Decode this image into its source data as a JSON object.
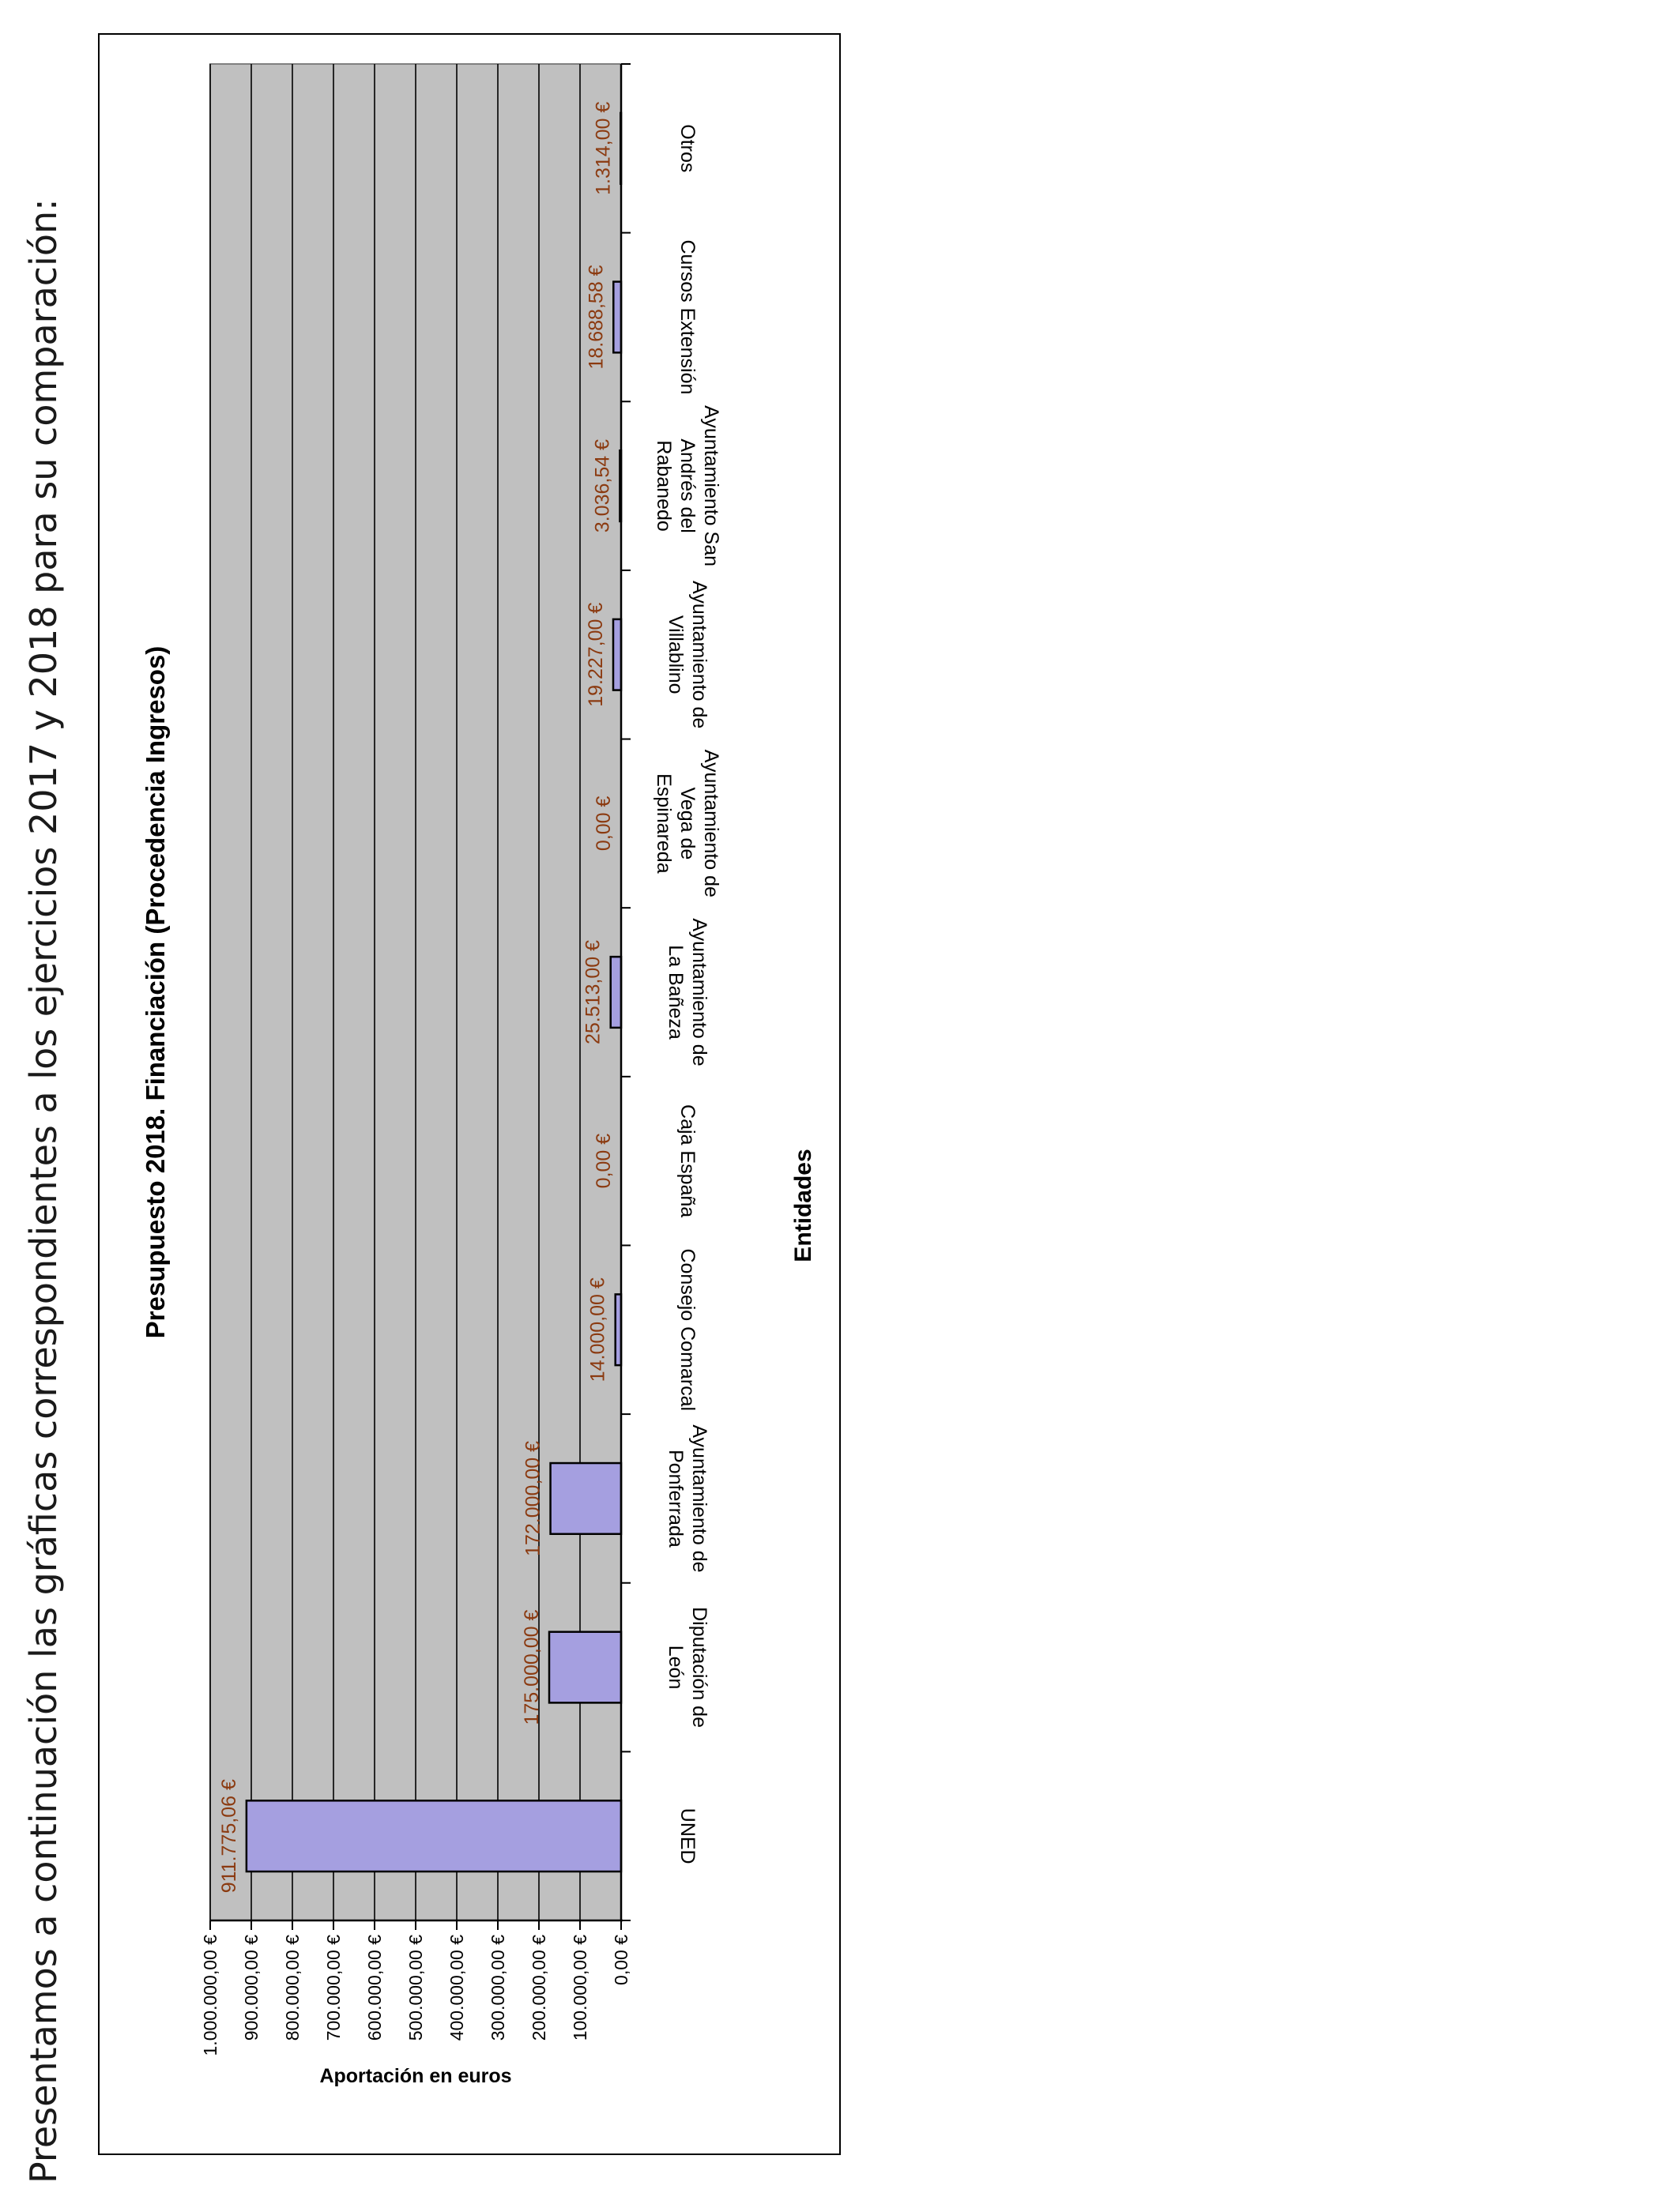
{
  "intro_text": "Presentamos a continuación las gráficas correspondientes a los ejercicios 2017 y 2018 para su comparación:",
  "colors": {
    "plot_bg": "#c0c0c0",
    "bar_fill": "#a59fe0",
    "bar_stroke": "#000000",
    "label": "#8b3a10",
    "grid": "#000000"
  },
  "chart_data": {
    "type": "bar",
    "title": "Presupuesto 2018. Financiación (Procedencia Ingresos)",
    "xlabel": "Entidades",
    "ylabel": "Aportación en euros",
    "ylim": [
      0,
      1000000
    ],
    "grid": true,
    "categories": [
      "UNED",
      "Diputación de León",
      "Ayuntamiento de Ponferrada",
      "Consejo Comarcal",
      "Caja España",
      "Ayuntamiento de La Bañeza",
      "Ayuntamiento de Vega de Espinareda",
      "Ayuntamiento de Villablino",
      "Ayuntamiento San Andrés del Rabanedo",
      "Cursos Extensión",
      "Otros"
    ],
    "category_lines": [
      [
        "UNED"
      ],
      [
        "Diputación de",
        "León"
      ],
      [
        "Ayuntamiento de",
        "Ponferrada"
      ],
      [
        "Consejo Comarcal"
      ],
      [
        "Caja España"
      ],
      [
        "Ayuntamiento de",
        "La Bañeza"
      ],
      [
        "Ayuntamiento de",
        "Vega de",
        "Espinareda"
      ],
      [
        "Ayuntamiento de",
        "Villablino"
      ],
      [
        "Ayuntamiento San",
        "Andrés del",
        "Rabanedo"
      ],
      [
        "Cursos Extensión"
      ],
      [
        "Otros"
      ]
    ],
    "values": [
      911775.06,
      175000,
      172000,
      14000,
      0,
      25513,
      0,
      19227,
      3036.54,
      18688.58,
      1314
    ],
    "data_labels": [
      "911.775,06 €",
      "175.000,00 €",
      "172.000,00 €",
      "14.000,00 €",
      "0,00 €",
      "25.513,00 €",
      "0,00 €",
      "19.227,00 €",
      "3.036,54 €",
      "18.688,58 €",
      "1.314,00 €"
    ],
    "y_ticks": [
      0,
      100000,
      200000,
      300000,
      400000,
      500000,
      600000,
      700000,
      800000,
      900000,
      1000000
    ],
    "y_tick_labels": [
      "0,00 €",
      "100.000,00 €",
      "200.000,00 €",
      "300.000,00 €",
      "400.000,00 €",
      "500.000,00 €",
      "600.000,00 €",
      "700.000,00 €",
      "800.000,00 €",
      "900.000,00 €",
      "1.000.000,00 €"
    ]
  }
}
